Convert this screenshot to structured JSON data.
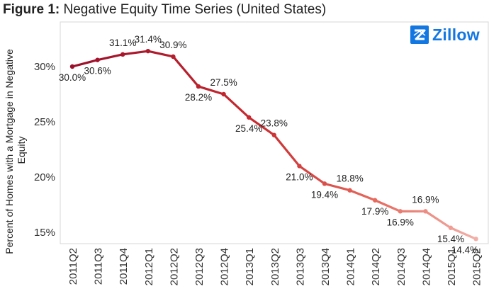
{
  "title": {
    "prefix": "Figure 1:",
    "text": "Negative Equity Time Series (United States)"
  },
  "logo": {
    "text": "Zillow",
    "icon": "zillow-z-icon",
    "color": "#1277e1"
  },
  "chart_data": {
    "type": "line",
    "title": "Negative Equity Time Series (United States)",
    "xlabel": "",
    "ylabel": "Percent of Homes with a Mortgage in Negative Equity",
    "ylim": [
      13,
      34
    ],
    "yticks": [
      15,
      20,
      25,
      30
    ],
    "ytick_labels": [
      "15%",
      "20%",
      "25%",
      "30%"
    ],
    "grid": false,
    "categories": [
      "2011Q2",
      "2011Q3",
      "2011Q4",
      "2012Q1",
      "2012Q2",
      "2012Q3",
      "2012Q4",
      "2013Q1",
      "2013Q2",
      "2013Q3",
      "2013Q4",
      "2014Q1",
      "2014Q2",
      "2014Q3",
      "2014Q4",
      "2015Q1",
      "2015Q2"
    ],
    "series": [
      {
        "values": [
          30.0,
          30.6,
          31.1,
          31.4,
          30.9,
          28.2,
          27.5,
          25.4,
          23.8,
          21.0,
          19.4,
          18.8,
          17.9,
          16.9,
          16.9,
          15.4,
          14.4
        ],
        "labels": [
          "30.0%",
          "30.6%",
          "31.1%",
          "31.4%",
          "30.9%",
          "28.2%",
          "27.5%",
          "25.4%",
          "23.8%",
          "21.0%",
          "19.4%",
          "18.8%",
          "17.9%",
          "16.9%",
          "16.9%",
          "15.4%",
          "14.4%"
        ],
        "color_start": "#9b0f2a",
        "color_end": "#f2b0a8"
      }
    ]
  }
}
